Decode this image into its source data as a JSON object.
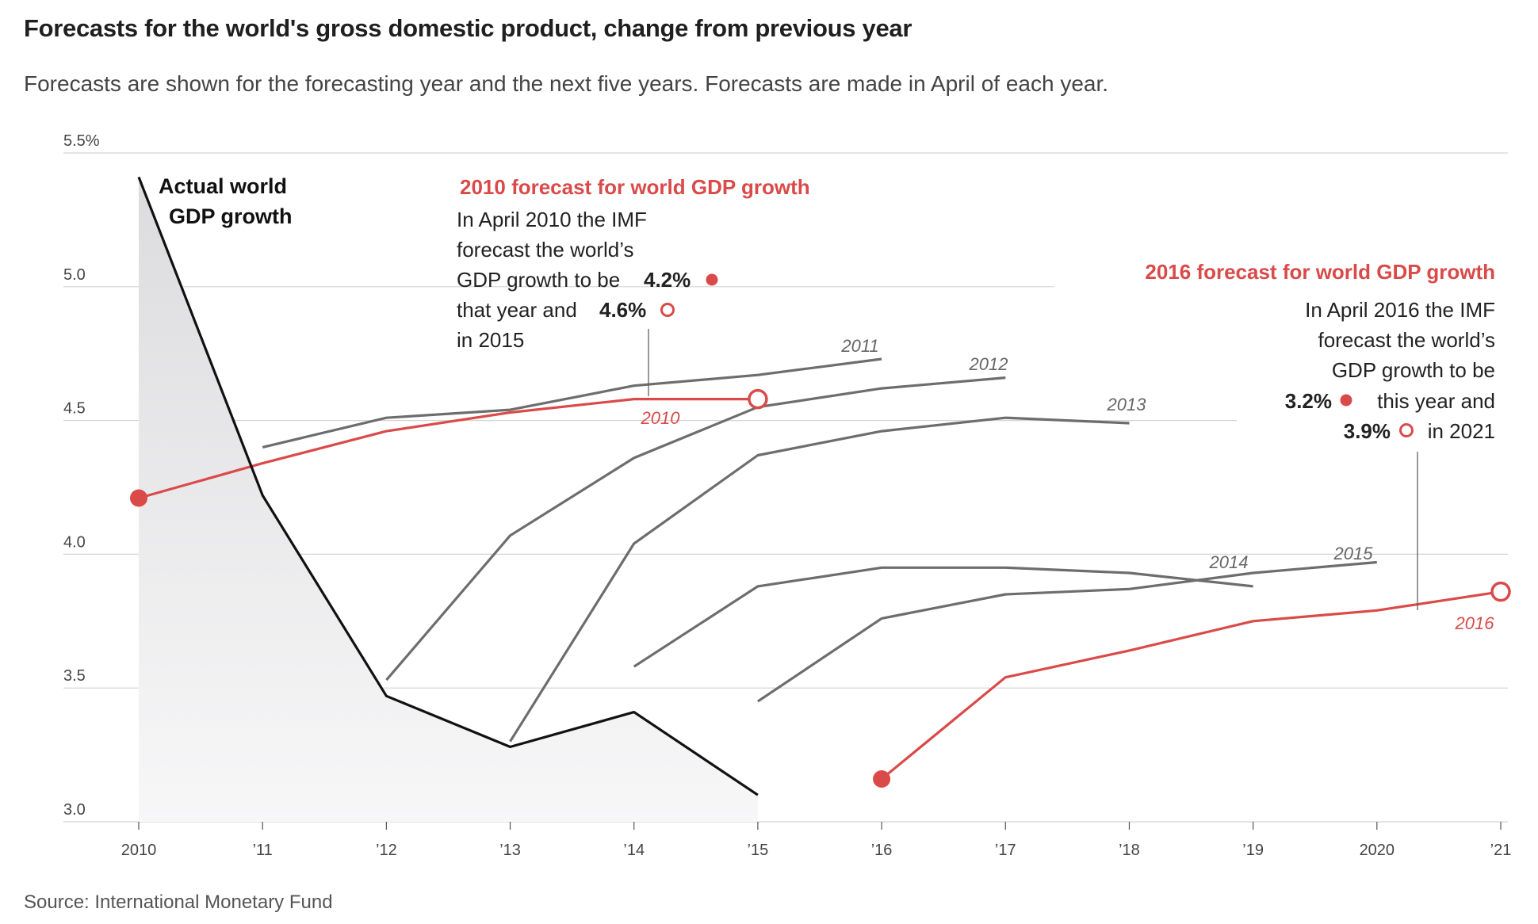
{
  "title": "Forecasts for the world's gross domestic product, change from previous year",
  "subtitle": "Forecasts are shown for the forecasting year and the next five years. Forecasts are made in April of each year.",
  "source": "Source: International Monetary Fund",
  "colors": {
    "actual": "#111111",
    "forecast": "#6d6d6d",
    "highlight": "#d94a49",
    "area": "#e3e3e5",
    "grid": "#d4d4d4"
  },
  "chart_data": {
    "type": "line",
    "ylim": [
      3.0,
      5.5
    ],
    "xlim": [
      2010,
      2021
    ],
    "y_ticks": [
      {
        "value": 5.5,
        "label": "5.5%"
      },
      {
        "value": 5.0,
        "label": "5.0"
      },
      {
        "value": 4.5,
        "label": "4.5"
      },
      {
        "value": 4.0,
        "label": "4.0"
      },
      {
        "value": 3.5,
        "label": "3.5"
      },
      {
        "value": 3.0,
        "label": "3.0"
      }
    ],
    "x_ticks": [
      {
        "value": 2010,
        "label": "2010"
      },
      {
        "value": 2011,
        "label": "’11"
      },
      {
        "value": 2012,
        "label": "’12"
      },
      {
        "value": 2013,
        "label": "’13"
      },
      {
        "value": 2014,
        "label": "’14"
      },
      {
        "value": 2015,
        "label": "’15"
      },
      {
        "value": 2016,
        "label": "’16"
      },
      {
        "value": 2017,
        "label": "’17"
      },
      {
        "value": 2018,
        "label": "’18"
      },
      {
        "value": 2019,
        "label": "’19"
      },
      {
        "value": 2020,
        "label": "2020"
      },
      {
        "value": 2021,
        "label": "’21"
      }
    ],
    "actual": {
      "label_lines": [
        "Actual world",
        "GDP growth"
      ],
      "points": [
        [
          2010,
          5.41
        ],
        [
          2011,
          4.22
        ],
        [
          2012,
          3.47
        ],
        [
          2013,
          3.28
        ],
        [
          2014,
          3.41
        ],
        [
          2015,
          3.1
        ]
      ]
    },
    "forecasts": [
      {
        "name": "2011",
        "points": [
          [
            2011,
            4.4
          ],
          [
            2012,
            4.51
          ],
          [
            2013,
            4.54
          ],
          [
            2014,
            4.63
          ],
          [
            2015,
            4.67
          ],
          [
            2016,
            4.73
          ]
        ]
      },
      {
        "name": "2012",
        "points": [
          [
            2012,
            3.53
          ],
          [
            2013,
            4.07
          ],
          [
            2014,
            4.36
          ],
          [
            2015,
            4.55
          ],
          [
            2016,
            4.62
          ],
          [
            2017,
            4.66
          ]
        ]
      },
      {
        "name": "2013",
        "points": [
          [
            2013,
            3.3
          ],
          [
            2014,
            4.04
          ],
          [
            2015,
            4.37
          ],
          [
            2016,
            4.46
          ],
          [
            2017,
            4.51
          ],
          [
            2018,
            4.49
          ]
        ]
      },
      {
        "name": "2014",
        "points": [
          [
            2014,
            3.58
          ],
          [
            2015,
            3.88
          ],
          [
            2016,
            3.95
          ],
          [
            2017,
            3.95
          ],
          [
            2018,
            3.93
          ],
          [
            2019,
            3.88
          ]
        ]
      },
      {
        "name": "2015",
        "points": [
          [
            2015,
            3.45
          ],
          [
            2016,
            3.76
          ],
          [
            2017,
            3.85
          ],
          [
            2018,
            3.87
          ],
          [
            2019,
            3.93
          ],
          [
            2020,
            3.97
          ]
        ]
      }
    ],
    "highlighted": [
      {
        "name": "2010",
        "points": [
          [
            2010,
            4.21
          ],
          [
            2011,
            4.34
          ],
          [
            2012,
            4.46
          ],
          [
            2013,
            4.53
          ],
          [
            2014,
            4.58
          ],
          [
            2015,
            4.58
          ]
        ],
        "heading": "2010 forecast for world GDP growth",
        "lines": [
          "In April 2010 the IMF",
          "forecast the world’s",
          "GDP growth to be",
          "that year and",
          "in 2015"
        ],
        "first_value": "4.2%",
        "last_value": "4.6%"
      },
      {
        "name": "2016",
        "points": [
          [
            2016,
            3.16
          ],
          [
            2017,
            3.54
          ],
          [
            2018,
            3.64
          ],
          [
            2019,
            3.75
          ],
          [
            2020,
            3.79
          ],
          [
            2021,
            3.86
          ]
        ],
        "heading": "2016 forecast for world GDP growth",
        "lines": [
          "In April 2016 the IMF",
          "forecast the world’s",
          "GDP growth to be",
          "this year and",
          "in 2021"
        ],
        "first_value": "3.2%",
        "last_value": "3.9%"
      }
    ]
  }
}
